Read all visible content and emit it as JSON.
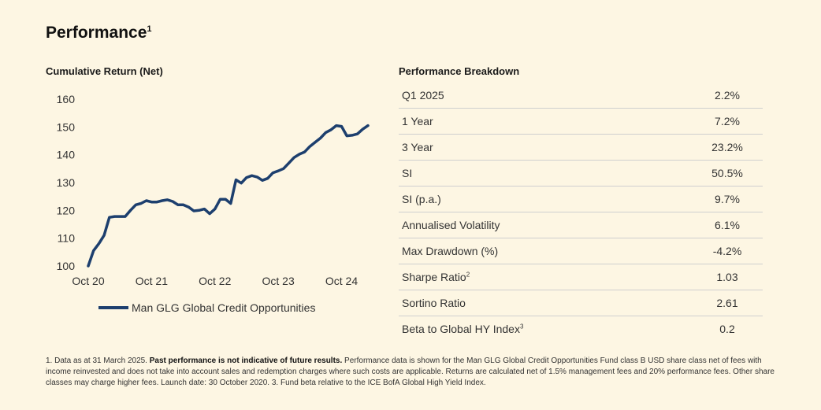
{
  "page": {
    "title": "Performance",
    "title_sup": "1"
  },
  "chart_data": {
    "type": "line",
    "title": "Cumulative Return (Net)",
    "xlabel": "",
    "ylabel": "",
    "x_tick_labels": [
      "Oct 20",
      "Oct 21",
      "Oct 22",
      "Oct 23",
      "Oct 24"
    ],
    "x_range": [
      "Oct 20",
      "Mar 25"
    ],
    "y_ticks": [
      100,
      110,
      120,
      130,
      140,
      150,
      160
    ],
    "ylim": [
      100,
      160
    ],
    "grid": false,
    "legend_position": "bottom",
    "series": [
      {
        "name": "Man GLG Global Credit Opportunities",
        "color": "#1d3f6e",
        "x": [
          "2020-10",
          "2020-11",
          "2020-12",
          "2021-01",
          "2021-02",
          "2021-03",
          "2021-04",
          "2021-05",
          "2021-06",
          "2021-07",
          "2021-08",
          "2021-09",
          "2021-10",
          "2021-11",
          "2021-12",
          "2022-01",
          "2022-02",
          "2022-03",
          "2022-04",
          "2022-05",
          "2022-06",
          "2022-07",
          "2022-08",
          "2022-09",
          "2022-10",
          "2022-11",
          "2022-12",
          "2023-01",
          "2023-02",
          "2023-03",
          "2023-04",
          "2023-05",
          "2023-06",
          "2023-07",
          "2023-08",
          "2023-09",
          "2023-10",
          "2023-11",
          "2023-12",
          "2024-01",
          "2024-02",
          "2024-03",
          "2024-04",
          "2024-05",
          "2024-06",
          "2024-07",
          "2024-08",
          "2024-09",
          "2024-10",
          "2024-11",
          "2024-12",
          "2025-01",
          "2025-02",
          "2025-03"
        ],
        "values": [
          100,
          105.5,
          108,
          111,
          117.5,
          117.8,
          117.8,
          117.8,
          120,
          122,
          122.5,
          123.5,
          123,
          123,
          123.5,
          123.8,
          123.2,
          122,
          122,
          121.2,
          119.8,
          120,
          120.5,
          118.8,
          120.5,
          124,
          124,
          122.5,
          131,
          129.8,
          131.8,
          132.5,
          132,
          130.8,
          131.5,
          133.5,
          134.2,
          135,
          137,
          139,
          140.2,
          141,
          143,
          144.5,
          146,
          148,
          149,
          150.5,
          150.2,
          146.8,
          147,
          147.5,
          149.2,
          150.5
        ]
      }
    ]
  },
  "breakdown": {
    "title": "Performance Breakdown",
    "rows": [
      {
        "label": "Q1 2025",
        "sup": "",
        "value": "2.2%"
      },
      {
        "label": "1 Year",
        "sup": "",
        "value": "7.2%"
      },
      {
        "label": "3 Year",
        "sup": "",
        "value": "23.2%"
      },
      {
        "label": "SI",
        "sup": "",
        "value": "50.5%"
      },
      {
        "label": "SI (p.a.)",
        "sup": "",
        "value": "9.7%"
      },
      {
        "label": "Annualised Volatility",
        "sup": "",
        "value": "6.1%"
      },
      {
        "label": "Max Drawdown (%)",
        "sup": "",
        "value": "-4.2%"
      },
      {
        "label": "Sharpe Ratio",
        "sup": "2",
        "value": "1.03"
      },
      {
        "label": "Sortino Ratio",
        "sup": "",
        "value": "2.61"
      },
      {
        "label": "Beta to Global HY Index",
        "sup": "3",
        "value": "0.2"
      }
    ]
  },
  "footnote": {
    "part1": "1. Data as at 31 March 2025. ",
    "bold": "Past performance is not indicative of future results.",
    "part2": " Performance data is shown for the Man GLG Global Credit Opportunities Fund class B USD share class net of fees with income reinvested and does not take into account sales and redemption charges where such costs are applicable. Returns are calculated net of 1.5% management fees and 20% performance fees. Other share classes may charge higher fees. Launch date: 30 October 2020. 3. Fund beta relative to the ICE BofA Global High Yield Index."
  }
}
